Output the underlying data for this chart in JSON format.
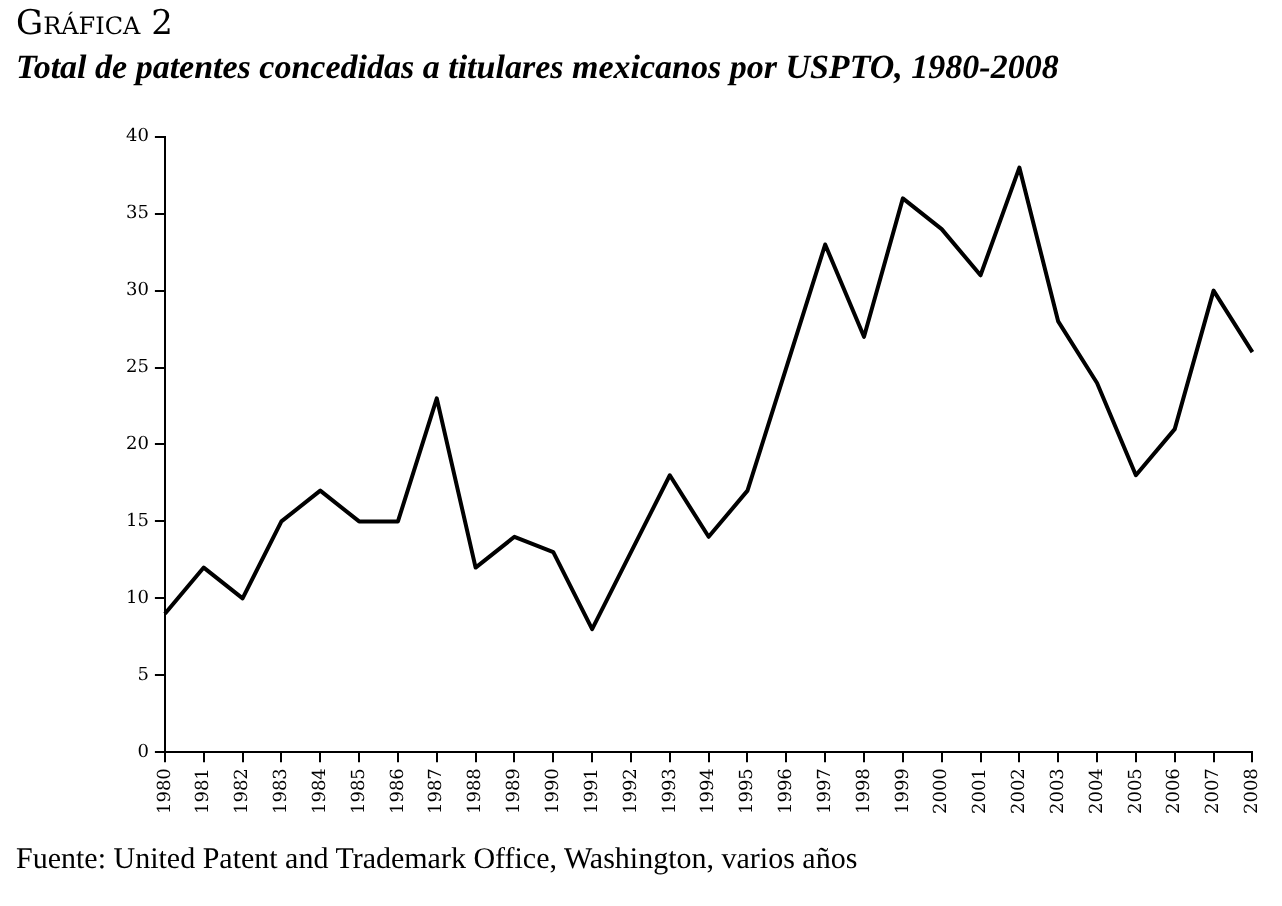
{
  "chart_data": {
    "type": "line",
    "title": "Gráfica 2",
    "subtitle": "Total de patentes concedidas a titulares mexicanos por USPTO, 1980-2008",
    "categories": [
      "1980",
      "1981",
      "1982",
      "1983",
      "1984",
      "1985",
      "1986",
      "1987",
      "1988",
      "1989",
      "1990",
      "1991",
      "1992",
      "1993",
      "1994",
      "1995",
      "1996",
      "1997",
      "1998",
      "1999",
      "2000",
      "2001",
      "2002",
      "2003",
      "2004",
      "2005",
      "2006",
      "2007",
      "2008"
    ],
    "series": [
      {
        "color": "#000000",
        "values": [
          9,
          12,
          10,
          15,
          17,
          15,
          15,
          23,
          12,
          14,
          13,
          8,
          13,
          18,
          14,
          17,
          25,
          33,
          27,
          36,
          34,
          31,
          38,
          28,
          24,
          18,
          21,
          30,
          26
        ]
      }
    ],
    "ylim": [
      0,
      40
    ],
    "yticks": [
      0,
      5,
      10,
      15,
      20,
      25,
      30,
      35,
      40
    ],
    "grid": false,
    "legend": false,
    "marker": "none",
    "line_style": "solid",
    "annotations": [
      "Fuente: United Patent and Trademark Office, Washington, varios años"
    ]
  }
}
